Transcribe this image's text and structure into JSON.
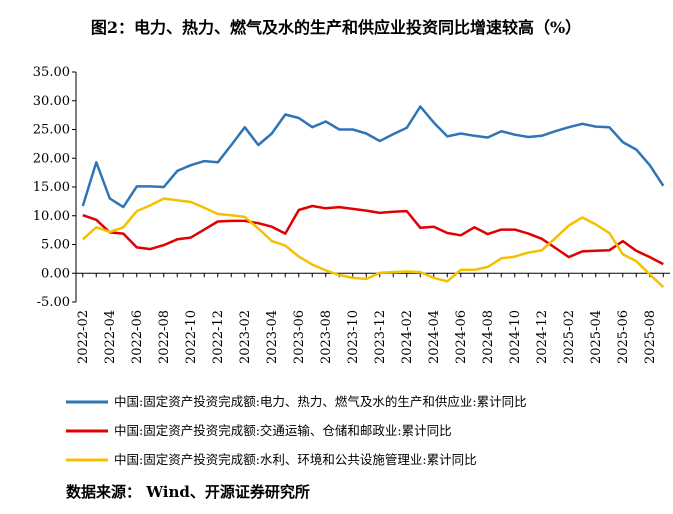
{
  "chart_data": {
    "type": "line",
    "title": "图2：电力、热力、燃气及水的生产和供应业投资同比增速较高（%）",
    "source": "数据来源： Wind、开源证券研究所",
    "categories": [
      "2022-02",
      null,
      "2022-04",
      null,
      "2022-06",
      null,
      "2022-08",
      null,
      "2022-10",
      null,
      "2022-12",
      null,
      "2023-02",
      null,
      "2023-04",
      null,
      "2023-06",
      null,
      "2023-08",
      null,
      "2023-10",
      null,
      "2023-12",
      null,
      "2024-02",
      null,
      "2024-04",
      null,
      "2024-06",
      null,
      "2024-08",
      null,
      "2024-10",
      null,
      "2024-12",
      null,
      "2025-02",
      null,
      "2025-04",
      null,
      "2025-06",
      null,
      "2025-08",
      null
    ],
    "series": [
      {
        "name": "中国:固定资产投资完成额:电力、热力、燃气及水的生产和供应业:累计同比",
        "color": "#2e75b6",
        "values": [
          11.7,
          19.3,
          13.0,
          11.5,
          15.1,
          15.1,
          15.0,
          17.8,
          18.8,
          19.5,
          19.3,
          22.3,
          25.4,
          22.3,
          24.3,
          27.6,
          27.0,
          25.4,
          26.4,
          25.0,
          25.0,
          24.3,
          23.0,
          24.2,
          25.3,
          29.0,
          26.2,
          23.8,
          24.3,
          23.9,
          23.6,
          24.7,
          24.1,
          23.7,
          23.9,
          24.7,
          25.4,
          26.0,
          25.5,
          25.4,
          22.8,
          21.5,
          18.8,
          15.2
        ]
      },
      {
        "name": "中国:固定资产投资完成额:交通运输、仓储和邮政业:累计同比",
        "color": "#e00000",
        "values": [
          10.1,
          9.3,
          7.1,
          6.9,
          4.5,
          4.2,
          4.9,
          5.9,
          6.2,
          7.6,
          9.0,
          9.1,
          9.1,
          8.7,
          8.1,
          6.9,
          11.0,
          11.7,
          11.3,
          11.5,
          11.2,
          10.9,
          10.5,
          10.7,
          10.8,
          7.9,
          8.1,
          7.0,
          6.6,
          8.0,
          6.8,
          7.6,
          7.6,
          6.9,
          6.0,
          4.4,
          2.8,
          3.8,
          3.9,
          4.0,
          5.6,
          3.9,
          2.8,
          1.6
        ]
      },
      {
        "name": "中国:固定资产投资完成额:水利、环境和公共设施管理业:累计同比",
        "color": "#f5c000",
        "values": [
          5.9,
          8.0,
          7.2,
          8.0,
          10.8,
          11.8,
          13.0,
          12.7,
          12.4,
          11.4,
          10.3,
          10.1,
          9.8,
          7.8,
          5.6,
          4.8,
          2.9,
          1.5,
          0.5,
          -0.3,
          -0.8,
          -1.0,
          0.1,
          0.2,
          0.3,
          0.2,
          -0.8,
          -1.4,
          0.6,
          0.6,
          1.1,
          2.6,
          2.9,
          3.6,
          4.0,
          6.1,
          8.3,
          9.7,
          8.5,
          7.0,
          3.3,
          2.1,
          -0.2,
          -2.4
        ]
      }
    ],
    "ylim": [
      -5,
      35
    ],
    "yticks": [
      {
        "value": -5,
        "label": "-5.00"
      },
      {
        "value": 0,
        "label": "0.00"
      },
      {
        "value": 5,
        "label": "5.00"
      },
      {
        "value": 10,
        "label": "10.00"
      },
      {
        "value": 15,
        "label": "15.00"
      },
      {
        "value": 20,
        "label": "20.00"
      },
      {
        "value": 25,
        "label": "25.00"
      },
      {
        "value": 30,
        "label": "30.00"
      },
      {
        "value": 35,
        "label": "35.00"
      }
    ]
  }
}
